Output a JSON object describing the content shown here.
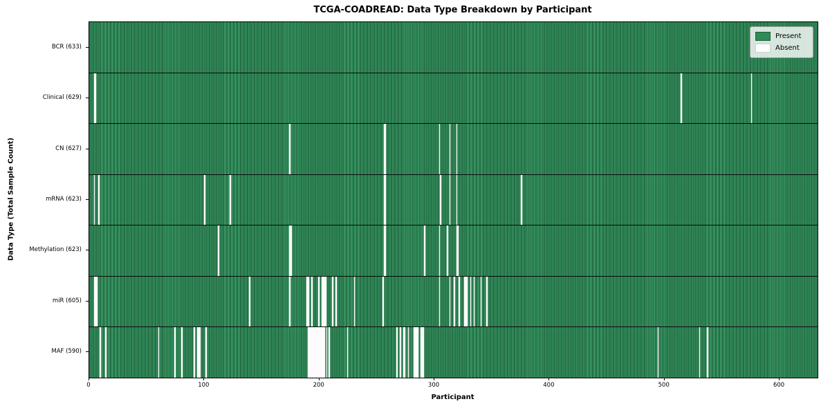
{
  "title": "TCGA-COADREAD: Data Type Breakdown by Participant",
  "legend": {
    "present_label": "Present",
    "absent_label": "Absent"
  },
  "colors": {
    "present": "#2e8b57",
    "absent": "#ffffff",
    "grid_line": "#0a0a0a"
  },
  "chart_data": {
    "type": "heatmap",
    "title": "TCGA-COADREAD: Data Type Breakdown by Participant",
    "xlabel": "Participant",
    "ylabel": "Data Type (Total Sample Count)",
    "legend": [
      "Present",
      "Absent"
    ],
    "legend_position": "upper right",
    "n_participants": 633,
    "x_range": [
      0,
      633
    ],
    "x_ticks": [
      0,
      100,
      200,
      300,
      400,
      500,
      600
    ],
    "cell_states": [
      "present",
      "absent"
    ],
    "rows": [
      {
        "label": "BCR (633)",
        "data_type": "BCR",
        "present_count": 633,
        "absent_participants": []
      },
      {
        "label": "Clinical (629)",
        "data_type": "Clinical",
        "present_count": 629,
        "absent_participants": [
          4,
          5,
          514,
          575
        ]
      },
      {
        "label": "CN (627)",
        "data_type": "CN",
        "present_count": 627,
        "absent_participants": [
          174,
          256,
          257,
          304,
          313,
          319
        ]
      },
      {
        "label": "mRNA (623)",
        "data_type": "mRNA",
        "present_count": 623,
        "absent_participants": [
          4,
          8,
          100,
          122,
          256,
          257,
          305,
          313,
          319,
          375
        ]
      },
      {
        "label": "Methylation (623)",
        "data_type": "Methylation",
        "present_count": 623,
        "absent_participants": [
          112,
          174,
          175,
          256,
          257,
          291,
          304,
          311,
          319,
          320
        ]
      },
      {
        "label": "miR (605)",
        "data_type": "miR",
        "present_count": 605,
        "absent_participants": [
          4,
          5,
          6,
          139,
          174,
          189,
          190,
          193,
          199,
          202,
          203,
          204,
          205,
          211,
          214,
          230,
          255,
          304,
          313,
          317,
          321,
          326,
          327,
          328,
          331,
          334,
          340,
          345
        ]
      },
      {
        "label": "MAF (590)",
        "data_type": "MAF",
        "present_count": 590,
        "absent_participants": [
          9,
          14,
          60,
          74,
          80,
          91,
          94,
          95,
          96,
          101,
          190,
          191,
          192,
          193,
          194,
          195,
          196,
          197,
          198,
          199,
          200,
          201,
          202,
          203,
          204,
          206,
          208,
          224,
          267,
          270,
          273,
          274,
          277,
          282,
          283,
          284,
          285,
          288,
          289,
          290,
          494,
          530,
          537
        ]
      }
    ]
  }
}
